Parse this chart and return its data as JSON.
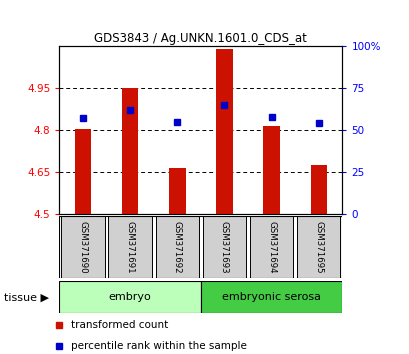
{
  "title": "GDS3843 / Ag.UNKN.1601.0_CDS_at",
  "samples": [
    "GSM371690",
    "GSM371691",
    "GSM371692",
    "GSM371693",
    "GSM371694",
    "GSM371695"
  ],
  "bar_values": [
    4.805,
    4.95,
    4.665,
    5.09,
    4.815,
    4.675
  ],
  "percentile_values": [
    57,
    62,
    55,
    65,
    58,
    54
  ],
  "ylim_left": [
    4.5,
    5.1
  ],
  "ylim_right": [
    0,
    100
  ],
  "yticks_left": [
    4.5,
    4.65,
    4.8,
    4.95
  ],
  "yticks_right": [
    0,
    25,
    50,
    75,
    100
  ],
  "ytick_labels_right": [
    "0",
    "25",
    "50",
    "75",
    "100%"
  ],
  "bar_color": "#cc1100",
  "dot_color": "#0000cc",
  "bar_width": 0.35,
  "embryo_color": "#bbffbb",
  "serosa_color": "#44cc44",
  "gsm_box_color": "#d0d0d0",
  "legend_items": [
    {
      "label": "transformed count",
      "color": "#cc1100"
    },
    {
      "label": "percentile rank within the sample",
      "color": "#0000cc"
    }
  ],
  "tissue_label": "tissue ▶"
}
